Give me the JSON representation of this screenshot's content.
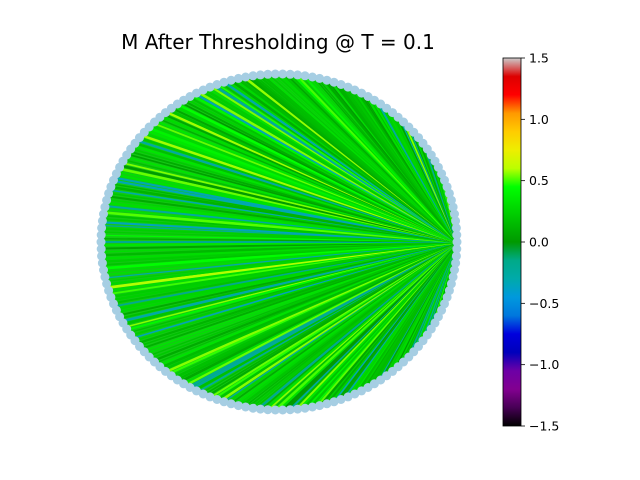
{
  "chart_data": {
    "type": "chord-fan",
    "title": "M After Thresholding @ T = 0.1",
    "xlabel": "",
    "ylabel": "",
    "grid": false,
    "hub_node": "rightmost boundary node",
    "node_color": "#a6cee3",
    "chord_value_range_observed": [
      -0.35,
      0.6
    ],
    "colorbar": {
      "colormap": "nipy_spectral",
      "range": [
        -1.5,
        1.5
      ],
      "ticks": [
        1.5,
        1.0,
        0.5,
        0.0,
        -0.5,
        -1.0,
        -1.5
      ],
      "tick_labels": [
        "1.5",
        "1.0",
        "0.5",
        "0.0",
        "−0.5",
        "−1.0",
        "−1.5"
      ],
      "placement": "right"
    }
  }
}
